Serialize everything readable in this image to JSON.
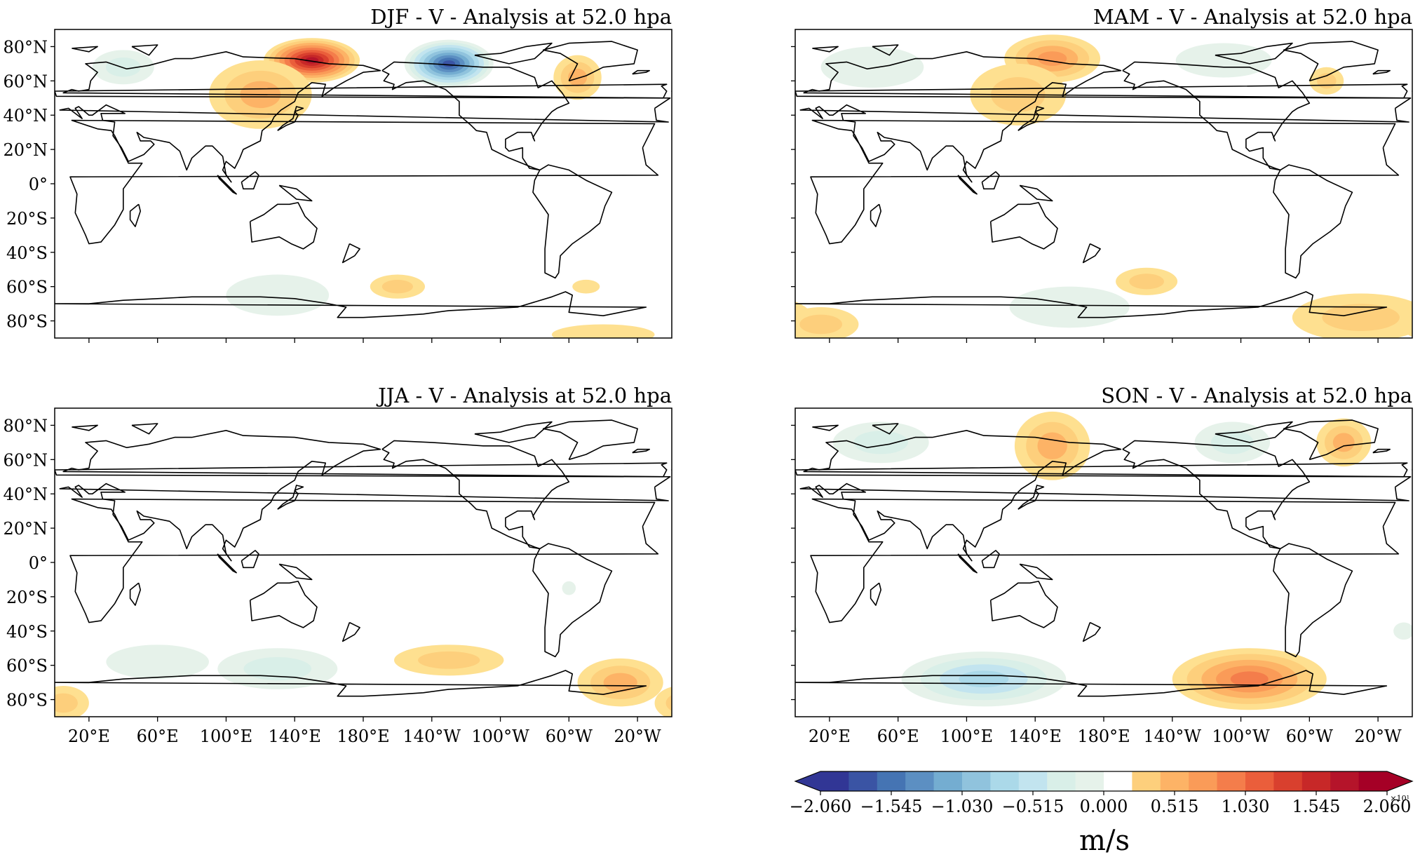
{
  "panels": [
    {
      "title": "DJF - V - Analysis at 52.0 hpa",
      "anomalies": [
        {
          "lon": 150,
          "lat": 72,
          "rlon": 28,
          "rlat": 13,
          "amp": 1.9
        },
        {
          "lon": 120,
          "lat": 52,
          "rlon": 30,
          "rlat": 20,
          "amp": 0.55
        },
        {
          "lon": 230,
          "lat": 70,
          "rlon": 26,
          "rlat": 14,
          "amp": -1.85
        },
        {
          "lon": 305,
          "lat": 62,
          "rlon": 14,
          "rlat": 13,
          "amp": 0.55
        },
        {
          "lon": 40,
          "lat": 68,
          "rlon": 18,
          "rlat": 10,
          "amp": -0.35
        },
        {
          "lon": 200,
          "lat": -60,
          "rlon": 16,
          "rlat": 7,
          "amp": 0.4
        },
        {
          "lon": 130,
          "lat": -65,
          "rlon": 30,
          "rlat": 12,
          "amp": -0.15
        },
        {
          "lon": 310,
          "lat": -60,
          "rlon": 8,
          "rlat": 4,
          "amp": 0.3
        },
        {
          "lon": 320,
          "lat": -88,
          "rlon": 30,
          "rlat": 6,
          "amp": 0.3
        }
      ]
    },
    {
      "title": "MAM - V - Analysis at 52.0 hpa",
      "anomalies": [
        {
          "lon": 150,
          "lat": 73,
          "rlon": 28,
          "rlat": 14,
          "amp": 0.8
        },
        {
          "lon": 130,
          "lat": 52,
          "rlon": 28,
          "rlat": 18,
          "amp": 0.4
        },
        {
          "lon": 45,
          "lat": 68,
          "rlon": 30,
          "rlat": 12,
          "amp": -0.3
        },
        {
          "lon": 250,
          "lat": 72,
          "rlon": 28,
          "rlat": 10,
          "amp": -0.3
        },
        {
          "lon": 310,
          "lat": 60,
          "rlon": 10,
          "rlat": 8,
          "amp": 0.35
        },
        {
          "lon": 205,
          "lat": -57,
          "rlon": 18,
          "rlat": 8,
          "amp": 0.35
        },
        {
          "lon": 160,
          "lat": -72,
          "rlon": 35,
          "rlat": 12,
          "amp": -0.3
        },
        {
          "lon": 330,
          "lat": -78,
          "rlon": 40,
          "rlat": 14,
          "amp": 0.5
        },
        {
          "lon": 15,
          "lat": -82,
          "rlon": 22,
          "rlat": 10,
          "amp": 0.4
        }
      ]
    },
    {
      "title": "JJA - V - Analysis at 52.0 hpa",
      "anomalies": [
        {
          "lon": 130,
          "lat": -62,
          "rlon": 35,
          "rlat": 12,
          "amp": -0.45
        },
        {
          "lon": 60,
          "lat": -58,
          "rlon": 30,
          "rlat": 10,
          "amp": -0.15
        },
        {
          "lon": 230,
          "lat": -57,
          "rlon": 32,
          "rlat": 9,
          "amp": 0.4
        },
        {
          "lon": 330,
          "lat": -70,
          "rlon": 25,
          "rlat": 14,
          "amp": 0.6
        },
        {
          "lon": 5,
          "lat": -82,
          "rlon": 15,
          "rlat": 10,
          "amp": 0.35
        },
        {
          "lon": 300,
          "lat": -15,
          "rlon": 4,
          "rlat": 4,
          "amp": -0.15
        }
      ]
    },
    {
      "title": "SON - V - Analysis at 52.0 hpa",
      "anomalies": [
        {
          "lon": 150,
          "lat": 68,
          "rlon": 22,
          "rlat": 20,
          "amp": 0.6
        },
        {
          "lon": 50,
          "lat": 70,
          "rlon": 28,
          "rlat": 12,
          "amp": -0.5
        },
        {
          "lon": 255,
          "lat": 70,
          "rlon": 22,
          "rlat": 12,
          "amp": -0.4
        },
        {
          "lon": 320,
          "lat": 70,
          "rlon": 16,
          "rlat": 14,
          "amp": 0.55
        },
        {
          "lon": 110,
          "lat": -68,
          "rlon": 48,
          "rlat": 16,
          "amp": -0.75
        },
        {
          "lon": 265,
          "lat": -68,
          "rlon": 45,
          "rlat": 18,
          "amp": 1.0
        },
        {
          "lon": 355,
          "lat": -40,
          "rlon": 6,
          "rlat": 5,
          "amp": -0.15
        }
      ]
    }
  ],
  "lon_ticks": [
    "20°E",
    "60°E",
    "100°E",
    "140°E",
    "180°E",
    "140°W",
    "100°W",
    "60°W",
    "20°W"
  ],
  "lat_ticks": [
    "80°N",
    "60°N",
    "40°N",
    "20°N",
    "0°",
    "20°S",
    "40°S",
    "60°S",
    "80°S"
  ],
  "colorbar": {
    "ticks": [
      "−2.060",
      "−1.545",
      "−1.030",
      "−0.515",
      "0.000",
      "0.515",
      "1.030",
      "1.545",
      "2.060"
    ],
    "multiplier": "×10¹",
    "unit": "m/s",
    "colors_negative": [
      "#313695",
      "#3a54a4",
      "#4574b3",
      "#5c8fc2",
      "#74add1",
      "#90c3dd",
      "#abd9e9",
      "#c2e4ef",
      "#d9efe8",
      "#e6f2ea"
    ],
    "colors_positive": [
      "#fee090",
      "#fdcf7c",
      "#fdb366",
      "#fa9b58",
      "#f47d4b",
      "#ea5e3b",
      "#d9402e",
      "#c72828",
      "#b5142a",
      "#a50026"
    ]
  }
}
